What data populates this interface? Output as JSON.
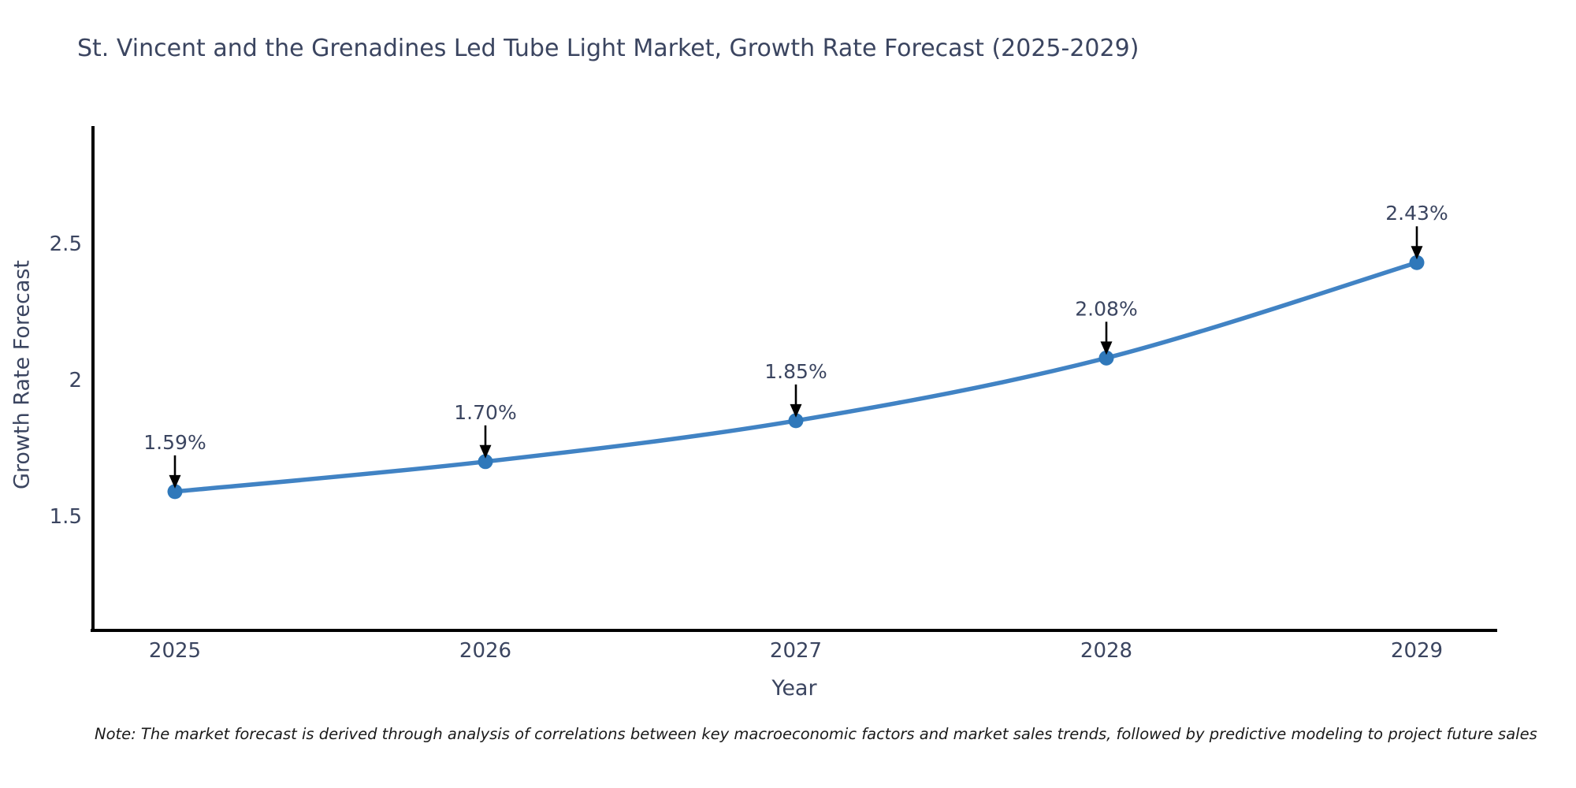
{
  "title": "St. Vincent and the Grenadines Led Tube Light Market, Growth Rate Forecast (2025-2029)",
  "note": "Note: The market forecast is derived through analysis of correlations between key macroeconomic factors and market sales trends, followed by predictive modeling to project future sales",
  "chart_data": {
    "type": "line",
    "title": "St. Vincent and the Grenadines Led Tube Light Market, Growth Rate Forecast (2025-2029)",
    "xlabel": "Year",
    "ylabel": "Growth Rate Forecast",
    "categories": [
      "2025",
      "2026",
      "2027",
      "2028",
      "2029"
    ],
    "x": [
      2025,
      2026,
      2027,
      2028,
      2029
    ],
    "values": [
      1.59,
      1.7,
      1.85,
      2.08,
      2.43
    ],
    "point_labels": [
      "1.59%",
      "1.70%",
      "1.85%",
      "2.08%",
      "2.43%"
    ],
    "yticks": [
      1.5,
      2,
      2.5
    ],
    "ytick_labels": [
      "1.5",
      "2",
      "2.5"
    ],
    "ylim": [
      1.08,
      2.94
    ],
    "xlim": [
      2024.73,
      2029.26
    ],
    "grid": false,
    "legend": "none",
    "colors": {
      "line": "#4183c4",
      "marker": "#2f78ba",
      "arrow": "#000000",
      "spine": "#000000",
      "text": "#3b4560",
      "note_text": "#1a1a1a"
    }
  }
}
